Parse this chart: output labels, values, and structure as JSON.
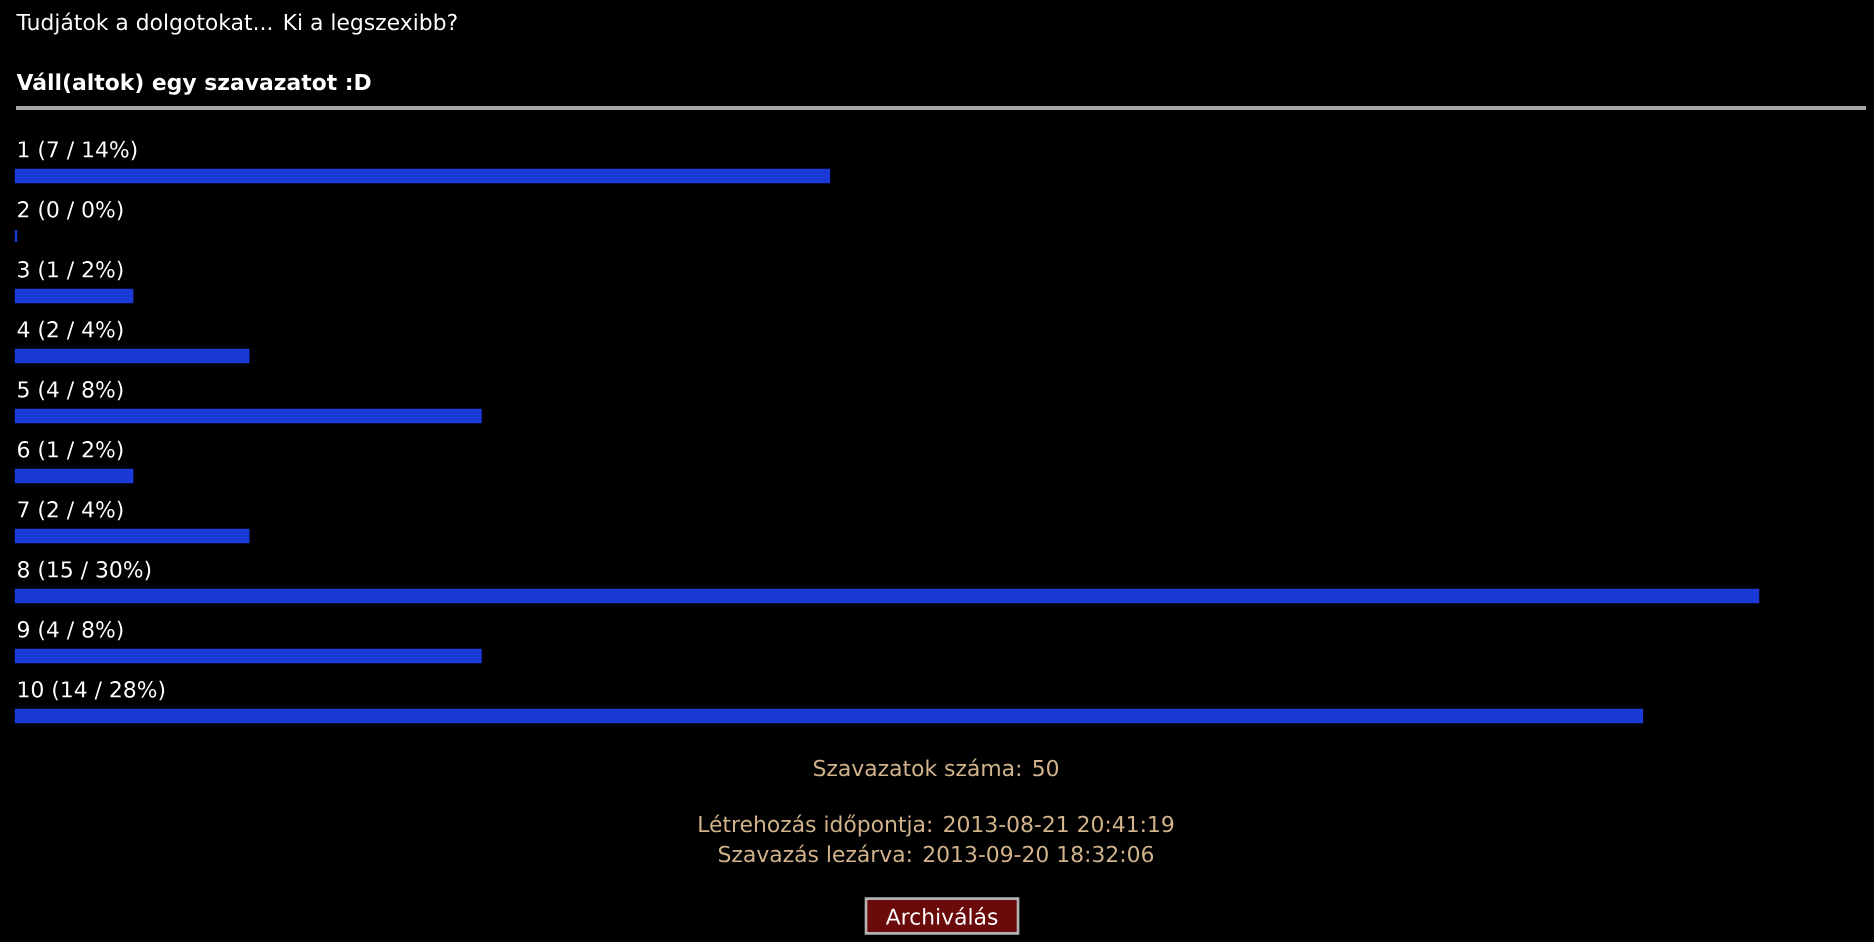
{
  "chart_data": {
    "type": "bar",
    "orientation": "horizontal",
    "title": "Tudjátok a dolgotokat... Ki a legszexibb?",
    "subtitle": "Váll(altok) egy szavazatot :D",
    "categories": [
      "1",
      "2",
      "3",
      "4",
      "5",
      "6",
      "7",
      "8",
      "9",
      "10"
    ],
    "values": [
      7,
      0,
      1,
      2,
      4,
      1,
      2,
      15,
      4,
      14
    ],
    "value_labels": [
      "(7 / 14%)",
      "(0 / 0%)",
      "(1 / 2%)",
      "(2 / 4%)",
      "(4 / 8%)",
      "(1 / 2%)",
      "(2 / 4%)",
      "(15 / 30%)",
      "(4 / 8%)",
      "(14 / 28%)"
    ],
    "color": "#1a3ad8",
    "annotations": [
      "Szavazatok száma: 50",
      "Létrehozás időpontja: 2013-08-21 20:41:19",
      "Szavazás lezárva: 2013-09-20 18:32:06",
      "Archiválás"
    ]
  }
}
